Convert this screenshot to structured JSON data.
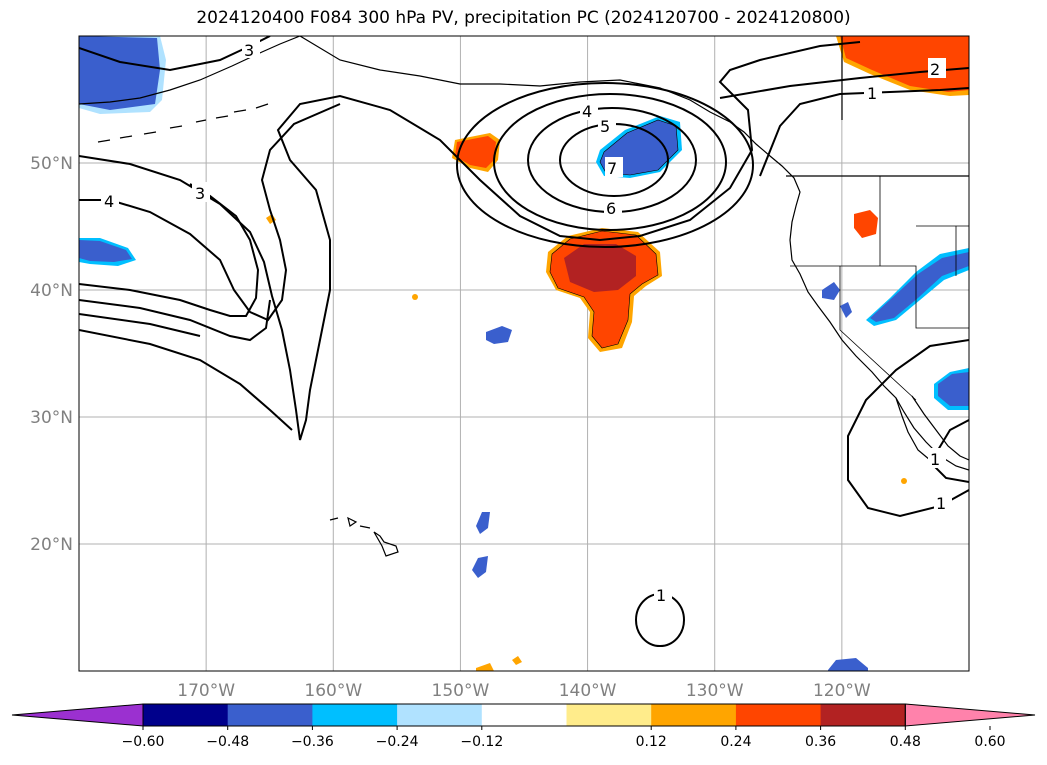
{
  "title": "2024120400 F084 300 hPa PV, precipitation PC (2024120700 - 2024120800)",
  "chart_data": {
    "type": "map",
    "projection": "lat-lon",
    "lon_range": [
      -180,
      -110
    ],
    "lat_range": [
      10,
      60
    ],
    "grid": true,
    "lon_ticks": [
      {
        "value": -170,
        "label": "170°W"
      },
      {
        "value": -160,
        "label": "160°W"
      },
      {
        "value": -150,
        "label": "150°W"
      },
      {
        "value": -140,
        "label": "140°W"
      },
      {
        "value": -130,
        "label": "130°W"
      },
      {
        "value": -120,
        "label": "120°W"
      }
    ],
    "lat_ticks": [
      {
        "value": 50,
        "label": "50°N"
      },
      {
        "value": 40,
        "label": "40°N"
      },
      {
        "value": 30,
        "label": "30°N"
      },
      {
        "value": 20,
        "label": "20°N"
      }
    ],
    "colorbar": {
      "extend": "both",
      "colors": [
        "#9b30d0",
        "#00008b",
        "#3a5fcd",
        "#00bfff",
        "#b0e2ff",
        "#ffffff",
        "#ffec8b",
        "#ffa500",
        "#ff4500",
        "#b22222",
        "#ff82ab"
      ],
      "tick_labels": [
        "−0.60",
        "−0.48",
        "−0.36",
        "−0.24",
        "−0.12",
        "0.12",
        "0.24",
        "0.36",
        "0.48",
        "0.60"
      ]
    },
    "contour_labels": [
      "3",
      "4",
      "3",
      "4",
      "5",
      "7",
      "6",
      "2",
      "1",
      "1",
      "1",
      "1"
    ]
  }
}
